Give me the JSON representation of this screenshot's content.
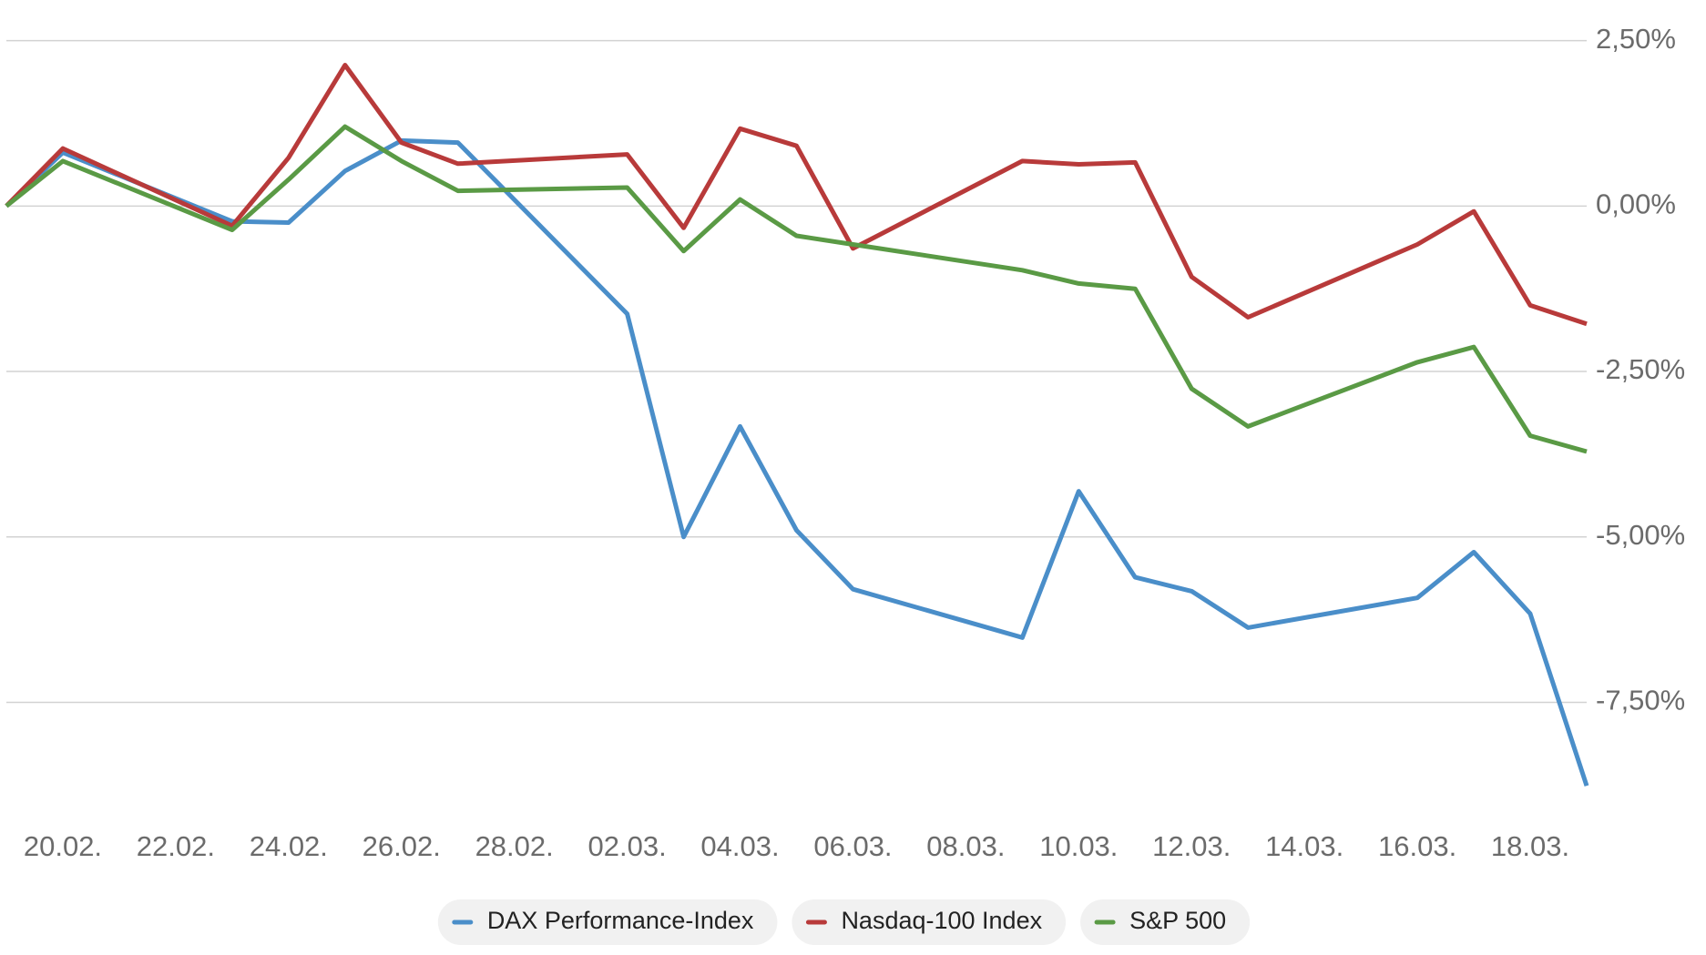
{
  "chart_data": {
    "type": "line",
    "categories": [
      null,
      "20.02.",
      null,
      "22.02.",
      null,
      "24.02.",
      null,
      "26.02.",
      null,
      "28.02.",
      null,
      "02.03.",
      null,
      "04.03.",
      null,
      "06.03.",
      null,
      "08.03.",
      null,
      "10.03.",
      null,
      "12.03.",
      null,
      "14.03.",
      null,
      "16.03.",
      null,
      "18.03.",
      null
    ],
    "series": [
      {
        "name": "DAX Performance-Index",
        "color": "#4a8ec9",
        "values": [
          0,
          0.81,
          null,
          null,
          -0.23,
          -0.25,
          0.53,
          0.99,
          0.96,
          null,
          null,
          -1.63,
          -5.0,
          -3.33,
          -4.9,
          -5.79,
          null,
          null,
          -6.52,
          -4.31,
          -5.61,
          -5.82,
          -6.37,
          null,
          null,
          -5.92,
          -5.23,
          -6.16,
          -8.76
        ]
      },
      {
        "name": "Nasdaq-100 Index",
        "color": "#b83a3a",
        "values": [
          0,
          0.87,
          null,
          null,
          -0.3,
          0.73,
          2.13,
          0.96,
          0.64,
          null,
          null,
          0.78,
          -0.33,
          1.17,
          0.91,
          -0.64,
          null,
          null,
          0.68,
          0.63,
          0.66,
          -1.07,
          -1.68,
          null,
          null,
          -0.58,
          -0.08,
          -1.5,
          -1.78
        ]
      },
      {
        "name": "S&P 500",
        "color": "#5a9a45",
        "values": [
          0,
          0.68,
          null,
          null,
          -0.36,
          0.4,
          1.2,
          0.68,
          0.23,
          null,
          null,
          0.28,
          -0.68,
          0.1,
          -0.45,
          -0.58,
          null,
          null,
          -0.97,
          -1.17,
          -1.25,
          -2.76,
          -3.33,
          null,
          null,
          -2.36,
          -2.13,
          -3.47,
          -3.71
        ]
      }
    ],
    "ylim": [
      -8.8,
      3.1
    ],
    "yticks": [
      {
        "value": 2.5,
        "label": "2,50%"
      },
      {
        "value": 0,
        "label": "0,00%"
      },
      {
        "value": -2.5,
        "label": "-2,50%"
      },
      {
        "value": -5,
        "label": "-5,00%"
      },
      {
        "value": -7.5,
        "label": "-7,50%"
      }
    ],
    "grid": true
  }
}
